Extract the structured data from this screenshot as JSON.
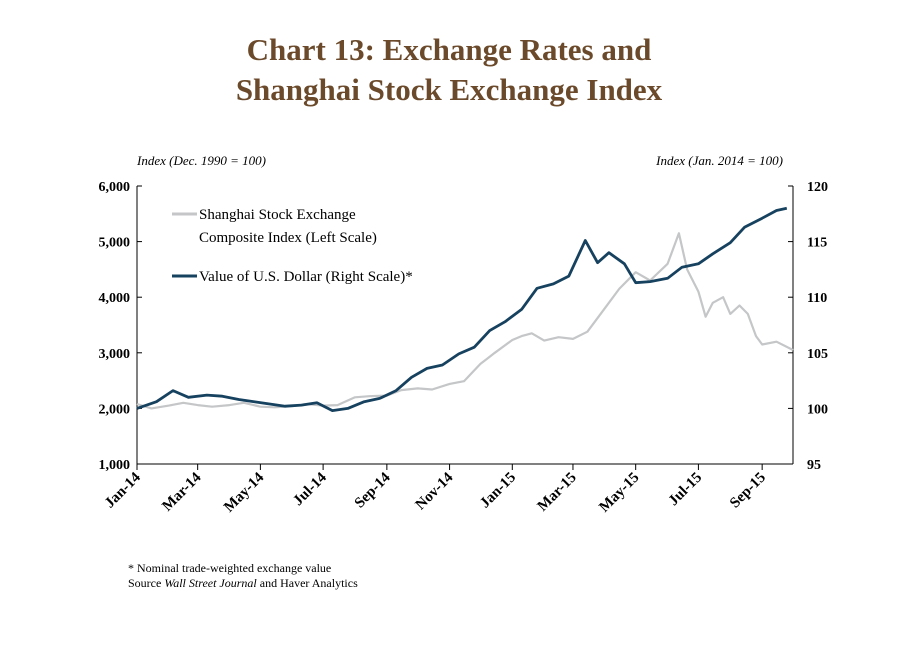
{
  "title": {
    "line1": "Chart 13: Exchange Rates and",
    "line2": "Shanghai Stock Exchange Index"
  },
  "footnote": {
    "note": "* Nominal trade-weighted exchange value",
    "source_prefix": "Source",
    "source_italic": "Wall Street Journal",
    "source_suffix": "and Haver Analytics"
  },
  "colors": {
    "title": "#6b4a2b",
    "shanghai": "#c4c6c8",
    "dollar": "#16415f"
  },
  "chart_data": {
    "type": "line",
    "title": "Chart 13: Exchange Rates and Shanghai Stock Exchange Index",
    "left_axis": {
      "label": "Index (Dec. 1990 = 100)",
      "range": [
        1000,
        6000
      ],
      "ticks": [
        "1,000",
        "2,000",
        "3,000",
        "4,000",
        "5,000",
        "6,000"
      ]
    },
    "right_axis": {
      "label": "Index (Jan. 2014 = 100)",
      "range": [
        95,
        120
      ],
      "ticks": [
        "95",
        "100",
        "105",
        "110",
        "115",
        "120"
      ]
    },
    "x_axis": {
      "range": [
        "2014-01",
        "2015-10"
      ],
      "ticks": [
        "Jan-14",
        "Mar-14",
        "May-14",
        "Jul-14",
        "Sep-14",
        "Nov-14",
        "Jan-15",
        "Mar-15",
        "May-15",
        "Jul-15",
        "Sep-15"
      ]
    },
    "legend": {
      "position": "top-left"
    },
    "grid": false,
    "series": [
      {
        "name": "Shanghai Stock Exchange Composite Index (Left Scale)",
        "legend_lines": [
          "Shanghai Stock Exchange",
          "Composite Index (Left Scale)"
        ],
        "axis": "left",
        "x": [
          "2014-01-01",
          "2014-01-15",
          "2014-02-01",
          "2014-02-15",
          "2014-03-01",
          "2014-03-15",
          "2014-04-01",
          "2014-04-15",
          "2014-05-01",
          "2014-05-15",
          "2014-06-01",
          "2014-06-15",
          "2014-07-01",
          "2014-07-15",
          "2014-08-01",
          "2014-08-15",
          "2014-09-01",
          "2014-09-15",
          "2014-10-01",
          "2014-10-15",
          "2014-11-01",
          "2014-11-15",
          "2014-12-01",
          "2014-12-08",
          "2014-12-15",
          "2015-01-01",
          "2015-01-10",
          "2015-01-20",
          "2015-02-01",
          "2015-02-15",
          "2015-03-01",
          "2015-03-15",
          "2015-04-01",
          "2015-04-15",
          "2015-05-01",
          "2015-05-15",
          "2015-06-01",
          "2015-06-12",
          "2015-06-20",
          "2015-07-01",
          "2015-07-08",
          "2015-07-15",
          "2015-07-25",
          "2015-08-01",
          "2015-08-10",
          "2015-08-18",
          "2015-08-26",
          "2015-09-01",
          "2015-09-15",
          "2015-10-01"
        ],
        "values": [
          2080,
          2000,
          2050,
          2100,
          2060,
          2030,
          2060,
          2100,
          2030,
          2020,
          2040,
          2080,
          2050,
          2060,
          2200,
          2220,
          2230,
          2330,
          2360,
          2340,
          2440,
          2490,
          2800,
          2900,
          3000,
          3230,
          3300,
          3350,
          3220,
          3280,
          3250,
          3380,
          3800,
          4150,
          4450,
          4300,
          4600,
          5150,
          4500,
          4100,
          3650,
          3900,
          4000,
          3700,
          3850,
          3700,
          3300,
          3150,
          3200,
          3050
        ]
      },
      {
        "name": "Value of U.S. Dollar (Right Scale)*",
        "legend_lines": [
          "Value of U.S. Dollar (Right Scale)*"
        ],
        "axis": "right",
        "x": [
          "2014-01-01",
          "2014-01-20",
          "2014-02-05",
          "2014-02-20",
          "2014-03-10",
          "2014-03-25",
          "2014-04-10",
          "2014-04-25",
          "2014-05-10",
          "2014-05-25",
          "2014-06-10",
          "2014-06-25",
          "2014-07-10",
          "2014-07-25",
          "2014-08-10",
          "2014-08-25",
          "2014-09-10",
          "2014-09-25",
          "2014-10-10",
          "2014-10-25",
          "2014-11-10",
          "2014-11-25",
          "2014-12-10",
          "2014-12-25",
          "2015-01-10",
          "2015-01-25",
          "2015-02-10",
          "2015-02-25",
          "2015-03-13",
          "2015-03-25",
          "2015-04-05",
          "2015-04-20",
          "2015-05-01",
          "2015-05-15",
          "2015-06-01",
          "2015-06-15",
          "2015-07-01",
          "2015-07-15",
          "2015-08-01",
          "2015-08-15",
          "2015-09-01",
          "2015-09-15",
          "2015-09-25"
        ],
        "values": [
          100,
          100.6,
          101.6,
          101,
          101.2,
          101.1,
          100.8,
          100.6,
          100.4,
          100.2,
          100.3,
          100.5,
          99.8,
          100,
          100.6,
          100.9,
          101.6,
          102.8,
          103.6,
          103.9,
          104.9,
          105.5,
          107,
          107.8,
          108.9,
          110.8,
          111.2,
          111.9,
          115.1,
          113.1,
          114,
          113,
          111.3,
          111.4,
          111.7,
          112.7,
          113,
          113.9,
          114.9,
          116.3,
          117.1,
          117.8,
          118
        ]
      }
    ]
  }
}
